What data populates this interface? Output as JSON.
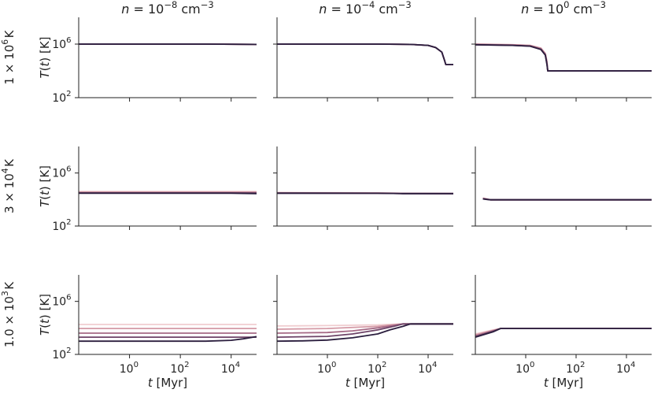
{
  "figure": {
    "col_titles": [
      "n = 10^-8 cm^-3",
      "n = 10^-4 cm^-3",
      "n = 10^0 cm^-3"
    ],
    "col_titles_rich": [
      {
        "pre": "n = 10",
        "exp": "−8",
        "post": " cm",
        "post_exp": "−3"
      },
      {
        "pre": "n = 10",
        "exp": "−4",
        "post": " cm",
        "post_exp": "−3"
      },
      {
        "pre": "n = 10",
        "exp": "0",
        "post": " cm",
        "post_exp": "−3"
      }
    ],
    "row_labels": [
      {
        "pre": "1 × 10",
        "exp": "6",
        "post": " K"
      },
      {
        "pre": "3 × 10",
        "exp": "4",
        "post": " K"
      },
      {
        "pre": "1.0 × 10",
        "exp": "3",
        "post": " K"
      }
    ],
    "ylabel": "T(t) [K]",
    "xlabel": "t [Myr]",
    "ytick_labels": [
      {
        "base": "10",
        "exp": "2"
      },
      {
        "base": "10",
        "exp": "6"
      }
    ],
    "xtick_labels": [
      {
        "base": "10",
        "exp": "0"
      },
      {
        "base": "10",
        "exp": "2"
      },
      {
        "base": "10",
        "exp": "4"
      }
    ]
  },
  "chart_data": {
    "type": "line",
    "layout": "3x3 grid of panels (rows: initial temperature, columns: density)",
    "xscale": "log",
    "yscale": "log",
    "xlim": [
      0.01,
      100000
    ],
    "ylim": [
      100,
      100000000
    ],
    "xticks": [
      1,
      100,
      10000
    ],
    "yticks": [
      100,
      1000000
    ],
    "grid": false,
    "legend": "none",
    "colors": [
      "#f0cdd0",
      "#d49aa6",
      "#a66a86",
      "#6e4468",
      "#2b1e3e"
    ],
    "panels": [
      {
        "row": 0,
        "col": 0,
        "series": [
          {
            "color": "#f0cdd0",
            "x": [
              0.01,
              1000,
              100000
            ],
            "y": [
              1000000,
              1000000,
              950000
            ]
          },
          {
            "color": "#d49aa6",
            "x": [
              0.01,
              1000,
              100000
            ],
            "y": [
              1000000,
              1000000,
              950000
            ]
          },
          {
            "color": "#a66a86",
            "x": [
              0.01,
              1000,
              100000
            ],
            "y": [
              1000000,
              1000000,
              950000
            ]
          },
          {
            "color": "#6e4468",
            "x": [
              0.01,
              1000,
              100000
            ],
            "y": [
              1000000,
              1000000,
              950000
            ]
          },
          {
            "color": "#2b1e3e",
            "x": [
              0.01,
              1000,
              100000
            ],
            "y": [
              1000000,
              1000000,
              950000
            ]
          }
        ]
      },
      {
        "row": 0,
        "col": 1,
        "series": [
          {
            "color": "#f0cdd0",
            "x": [
              0.01,
              100,
              2000,
              10000,
              20000,
              35000,
              45000,
              50000,
              100000
            ],
            "y": [
              1000000,
              1000000,
              950000,
              800000,
              550000,
              250000,
              60000,
              30000,
              30000
            ]
          },
          {
            "color": "#d49aa6",
            "x": [
              0.01,
              100,
              2000,
              10000,
              20000,
              35000,
              45000,
              50000,
              100000
            ],
            "y": [
              1000000,
              1000000,
              950000,
              800000,
              550000,
              250000,
              60000,
              30000,
              30000
            ]
          },
          {
            "color": "#a66a86",
            "x": [
              0.01,
              100,
              2000,
              10000,
              20000,
              35000,
              45000,
              50000,
              100000
            ],
            "y": [
              1000000,
              1000000,
              950000,
              800000,
              550000,
              250000,
              60000,
              30000,
              30000
            ]
          },
          {
            "color": "#6e4468",
            "x": [
              0.01,
              100,
              2000,
              10000,
              20000,
              35000,
              45000,
              50000,
              100000
            ],
            "y": [
              1000000,
              1000000,
              950000,
              800000,
              550000,
              250000,
              60000,
              30000,
              30000
            ]
          },
          {
            "color": "#2b1e3e",
            "x": [
              0.01,
              100,
              2000,
              10000,
              20000,
              35000,
              45000,
              50000,
              100000
            ],
            "y": [
              1000000,
              1000000,
              950000,
              800000,
              550000,
              250000,
              60000,
              30000,
              30000
            ]
          }
        ]
      },
      {
        "row": 0,
        "col": 2,
        "series": [
          {
            "color": "#f0cdd0",
            "x": [
              0.01,
              0.3,
              1.5,
              4,
              6,
              7,
              7.5,
              100000
            ],
            "y": [
              1000000,
              900000,
              800000,
              500000,
              200000,
              50000,
              10000,
              10000
            ]
          },
          {
            "color": "#d49aa6",
            "x": [
              0.01,
              0.3,
              1.5,
              4,
              6,
              7,
              7.5,
              100000
            ],
            "y": [
              1000000,
              900000,
              800000,
              500000,
              200000,
              50000,
              10000,
              10000
            ]
          },
          {
            "color": "#a66a86",
            "x": [
              0.01,
              0.3,
              1.5,
              4,
              6,
              7,
              7.5,
              100000
            ],
            "y": [
              950000,
              850000,
              750000,
              450000,
              180000,
              40000,
              10000,
              10000
            ]
          },
          {
            "color": "#6e4468",
            "x": [
              0.01,
              0.3,
              1.5,
              4,
              6,
              7,
              7.5,
              100000
            ],
            "y": [
              900000,
              800000,
              700000,
              400000,
              150000,
              30000,
              10000,
              10000
            ]
          },
          {
            "color": "#2b1e3e",
            "x": [
              0.01,
              0.3,
              1.5,
              4,
              6,
              7,
              7.5,
              100000
            ],
            "y": [
              900000,
              800000,
              700000,
              400000,
              150000,
              30000,
              10000,
              10000
            ]
          }
        ]
      },
      {
        "row": 1,
        "col": 0,
        "series": [
          {
            "color": "#f0cdd0",
            "x": [
              0.01,
              100000
            ],
            "y": [
              40000,
              40000
            ]
          },
          {
            "color": "#d49aa6",
            "x": [
              0.01,
              100000
            ],
            "y": [
              36000,
              36000
            ]
          },
          {
            "color": "#a66a86",
            "x": [
              0.01,
              100000
            ],
            "y": [
              33000,
              33000
            ]
          },
          {
            "color": "#6e4468",
            "x": [
              0.01,
              100000
            ],
            "y": [
              31000,
              31000
            ]
          },
          {
            "color": "#2b1e3e",
            "x": [
              0.01,
              10000,
              100000
            ],
            "y": [
              30000,
              30000,
              28000
            ]
          }
        ]
      },
      {
        "row": 1,
        "col": 1,
        "series": [
          {
            "color": "#f0cdd0",
            "x": [
              0.01,
              100,
              1000,
              100000
            ],
            "y": [
              34000,
              32000,
              29000,
              28000
            ]
          },
          {
            "color": "#d49aa6",
            "x": [
              0.01,
              100,
              1000,
              100000
            ],
            "y": [
              32000,
              31000,
              29000,
              28000
            ]
          },
          {
            "color": "#a66a86",
            "x": [
              0.01,
              100,
              1000,
              100000
            ],
            "y": [
              31000,
              30000,
              28500,
              28000
            ]
          },
          {
            "color": "#6e4468",
            "x": [
              0.01,
              100,
              1000,
              100000
            ],
            "y": [
              30000,
              29500,
              28000,
              28000
            ]
          },
          {
            "color": "#2b1e3e",
            "x": [
              0.01,
              100,
              1000,
              100000
            ],
            "y": [
              30000,
              29500,
              28000,
              28000
            ]
          }
        ]
      },
      {
        "row": 1,
        "col": 2,
        "series": [
          {
            "color": "#f0cdd0",
            "x": [
              0.02,
              0.03,
              0.04,
              100000
            ],
            "y": [
              13000,
              11000,
              9500,
              9500
            ]
          },
          {
            "color": "#d49aa6",
            "x": [
              0.02,
              0.03,
              0.04,
              100000
            ],
            "y": [
              12500,
              10800,
              9500,
              9500
            ]
          },
          {
            "color": "#a66a86",
            "x": [
              0.02,
              0.03,
              0.04,
              100000
            ],
            "y": [
              12000,
              10500,
              9500,
              9500
            ]
          },
          {
            "color": "#6e4468",
            "x": [
              0.02,
              0.03,
              0.04,
              100000
            ],
            "y": [
              11500,
              10300,
              9500,
              9500
            ]
          },
          {
            "color": "#2b1e3e",
            "x": [
              0.02,
              0.03,
              0.04,
              100000
            ],
            "y": [
              11000,
              10000,
              9500,
              9500
            ]
          }
        ]
      },
      {
        "row": 2,
        "col": 0,
        "series": [
          {
            "color": "#f0cdd0",
            "x": [
              0.01,
              100000
            ],
            "y": [
              18000,
              18000
            ]
          },
          {
            "color": "#d49aa6",
            "x": [
              0.01,
              100000
            ],
            "y": [
              9000,
              9000
            ]
          },
          {
            "color": "#a66a86",
            "x": [
              0.01,
              100000
            ],
            "y": [
              4000,
              4000
            ]
          },
          {
            "color": "#6e4468",
            "x": [
              0.01,
              100000
            ],
            "y": [
              2000,
              2000
            ]
          },
          {
            "color": "#2b1e3e",
            "x": [
              0.01,
              1000,
              10000,
              30000,
              100000
            ],
            "y": [
              1000,
              1000,
              1150,
              1500,
              2200
            ]
          }
        ]
      },
      {
        "row": 2,
        "col": 1,
        "series": [
          {
            "color": "#f0cdd0",
            "x": [
              0.01,
              1,
              100,
              1000,
              100000
            ],
            "y": [
              14000,
              15000,
              17000,
              20000,
              20000
            ]
          },
          {
            "color": "#d49aa6",
            "x": [
              0.01,
              1,
              100,
              500,
              1000,
              100000
            ],
            "y": [
              8000,
              9000,
              13000,
              18000,
              20000,
              20000
            ]
          },
          {
            "color": "#a66a86",
            "x": [
              0.01,
              1,
              10,
              100,
              500,
              1000,
              100000
            ],
            "y": [
              4000,
              4500,
              6000,
              10000,
              16000,
              20000,
              20000
            ]
          },
          {
            "color": "#6e4468",
            "x": [
              0.01,
              1,
              10,
              100,
              500,
              1000,
              100000
            ],
            "y": [
              2000,
              2300,
              3500,
              7000,
              14000,
              20000,
              20000
            ]
          },
          {
            "color": "#2b1e3e",
            "x": [
              0.01,
              0.1,
              1,
              10,
              100,
              300,
              1000,
              2000,
              100000
            ],
            "y": [
              1000,
              1050,
              1200,
              1800,
              3500,
              7000,
              13000,
              20000,
              20000
            ]
          }
        ]
      },
      {
        "row": 2,
        "col": 2,
        "series": [
          {
            "color": "#f0cdd0",
            "x": [
              0.01,
              0.05,
              0.1,
              100000
            ],
            "y": [
              3500,
              7000,
              9000,
              9000
            ]
          },
          {
            "color": "#d49aa6",
            "x": [
              0.01,
              0.05,
              0.1,
              100000
            ],
            "y": [
              3000,
              6500,
              9000,
              9000
            ]
          },
          {
            "color": "#a66a86",
            "x": [
              0.01,
              0.05,
              0.1,
              100000
            ],
            "y": [
              2500,
              6000,
              9000,
              9000
            ]
          },
          {
            "color": "#6e4468",
            "x": [
              0.01,
              0.05,
              0.1,
              100000
            ],
            "y": [
              2200,
              5500,
              9000,
              9000
            ]
          },
          {
            "color": "#2b1e3e",
            "x": [
              0.01,
              0.05,
              0.1,
              100000
            ],
            "y": [
              2000,
              5000,
              9000,
              9000
            ]
          }
        ]
      }
    ]
  }
}
